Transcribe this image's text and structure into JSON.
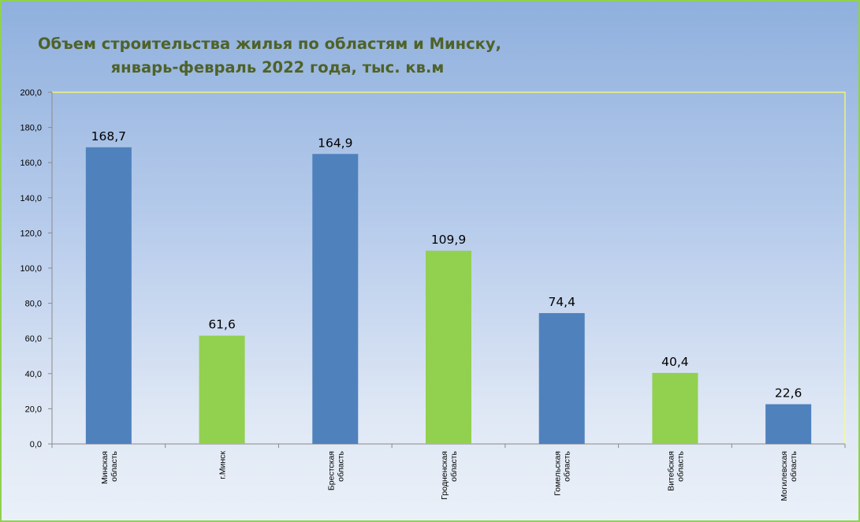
{
  "chart_data": {
    "type": "bar",
    "title": "Объем строительства жилья по областям и Минску,",
    "subtitle": "январь-февраль 2022 года, тыс. кв.м",
    "categories": [
      [
        "Минская",
        "область"
      ],
      [
        "г.Минск"
      ],
      [
        "Брестская",
        "область"
      ],
      [
        "Гродненская",
        "область"
      ],
      [
        "Гомельская",
        "область"
      ],
      [
        "Витебская",
        "область"
      ],
      [
        "Могилевская",
        "область"
      ]
    ],
    "values": [
      168.7,
      61.6,
      164.9,
      109.9,
      74.4,
      40.4,
      22.6
    ],
    "value_labels": [
      "168,7",
      "61,6",
      "164,9",
      "109,9",
      "74,4",
      "40,4",
      "22,6"
    ],
    "bar_colors": [
      "#4f81bd",
      "#92d050",
      "#4f81bd",
      "#92d050",
      "#4f81bd",
      "#92d050",
      "#4f81bd"
    ],
    "ylim": [
      0,
      200
    ],
    "yticks": [
      "0,0",
      "20,0",
      "40,0",
      "60,0",
      "80,0",
      "100,0",
      "120,0",
      "140,0",
      "160,0",
      "180,0",
      "200,0"
    ],
    "xlabel": "",
    "ylabel": "",
    "grid": false,
    "legend": "none"
  },
  "colors": {
    "title": "#4f6228",
    "plot_border": "#ffff66",
    "frame_border": "#8fd14f"
  }
}
